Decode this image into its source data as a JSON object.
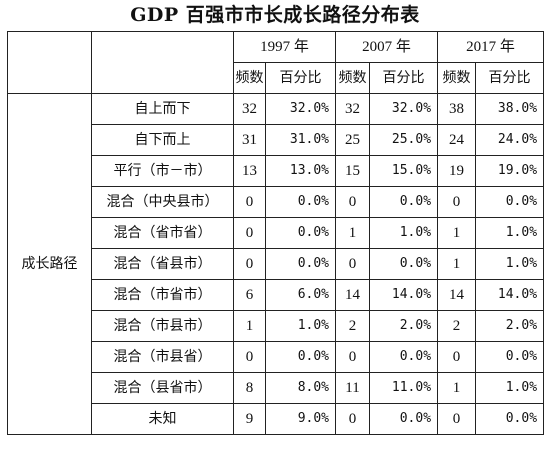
{
  "title": "GDP 百强市市长成长路径分布表",
  "years": [
    "1997 年",
    "2007 年",
    "2017 年"
  ],
  "sub_headers": {
    "count": "频数",
    "percent": "百分比"
  },
  "group_label": "成长路径",
  "rows": [
    {
      "label": "自上而下",
      "values": [
        [
          "32",
          "32.0%"
        ],
        [
          "32",
          "32.0%"
        ],
        [
          "38",
          "38.0%"
        ]
      ]
    },
    {
      "label": "自下而上",
      "values": [
        [
          "31",
          "31.0%"
        ],
        [
          "25",
          "25.0%"
        ],
        [
          "24",
          "24.0%"
        ]
      ]
    },
    {
      "label": "平行（市－市）",
      "values": [
        [
          "13",
          "13.0%"
        ],
        [
          "15",
          "15.0%"
        ],
        [
          "19",
          "19.0%"
        ]
      ]
    },
    {
      "label": "混合（中央县市）",
      "values": [
        [
          "0",
          "0.0%"
        ],
        [
          "0",
          "0.0%"
        ],
        [
          "0",
          "0.0%"
        ]
      ]
    },
    {
      "label": "混合（省市省）",
      "values": [
        [
          "0",
          "0.0%"
        ],
        [
          "1",
          "1.0%"
        ],
        [
          "1",
          "1.0%"
        ]
      ]
    },
    {
      "label": "混合（省县市）",
      "values": [
        [
          "0",
          "0.0%"
        ],
        [
          "0",
          "0.0%"
        ],
        [
          "1",
          "1.0%"
        ]
      ]
    },
    {
      "label": "混合（市省市）",
      "values": [
        [
          "6",
          "6.0%"
        ],
        [
          "14",
          "14.0%"
        ],
        [
          "14",
          "14.0%"
        ]
      ]
    },
    {
      "label": "混合（市县市）",
      "values": [
        [
          "1",
          "1.0%"
        ],
        [
          "2",
          "2.0%"
        ],
        [
          "2",
          "2.0%"
        ]
      ]
    },
    {
      "label": "混合（市县省）",
      "values": [
        [
          "0",
          "0.0%"
        ],
        [
          "0",
          "0.0%"
        ],
        [
          "0",
          "0.0%"
        ]
      ]
    },
    {
      "label": "混合（县省市）",
      "values": [
        [
          "8",
          "8.0%"
        ],
        [
          "11",
          "11.0%"
        ],
        [
          "1",
          "1.0%"
        ]
      ]
    },
    {
      "label": "未知",
      "values": [
        [
          "9",
          "9.0%"
        ],
        [
          "0",
          "0.0%"
        ],
        [
          "0",
          "0.0%"
        ]
      ]
    }
  ]
}
